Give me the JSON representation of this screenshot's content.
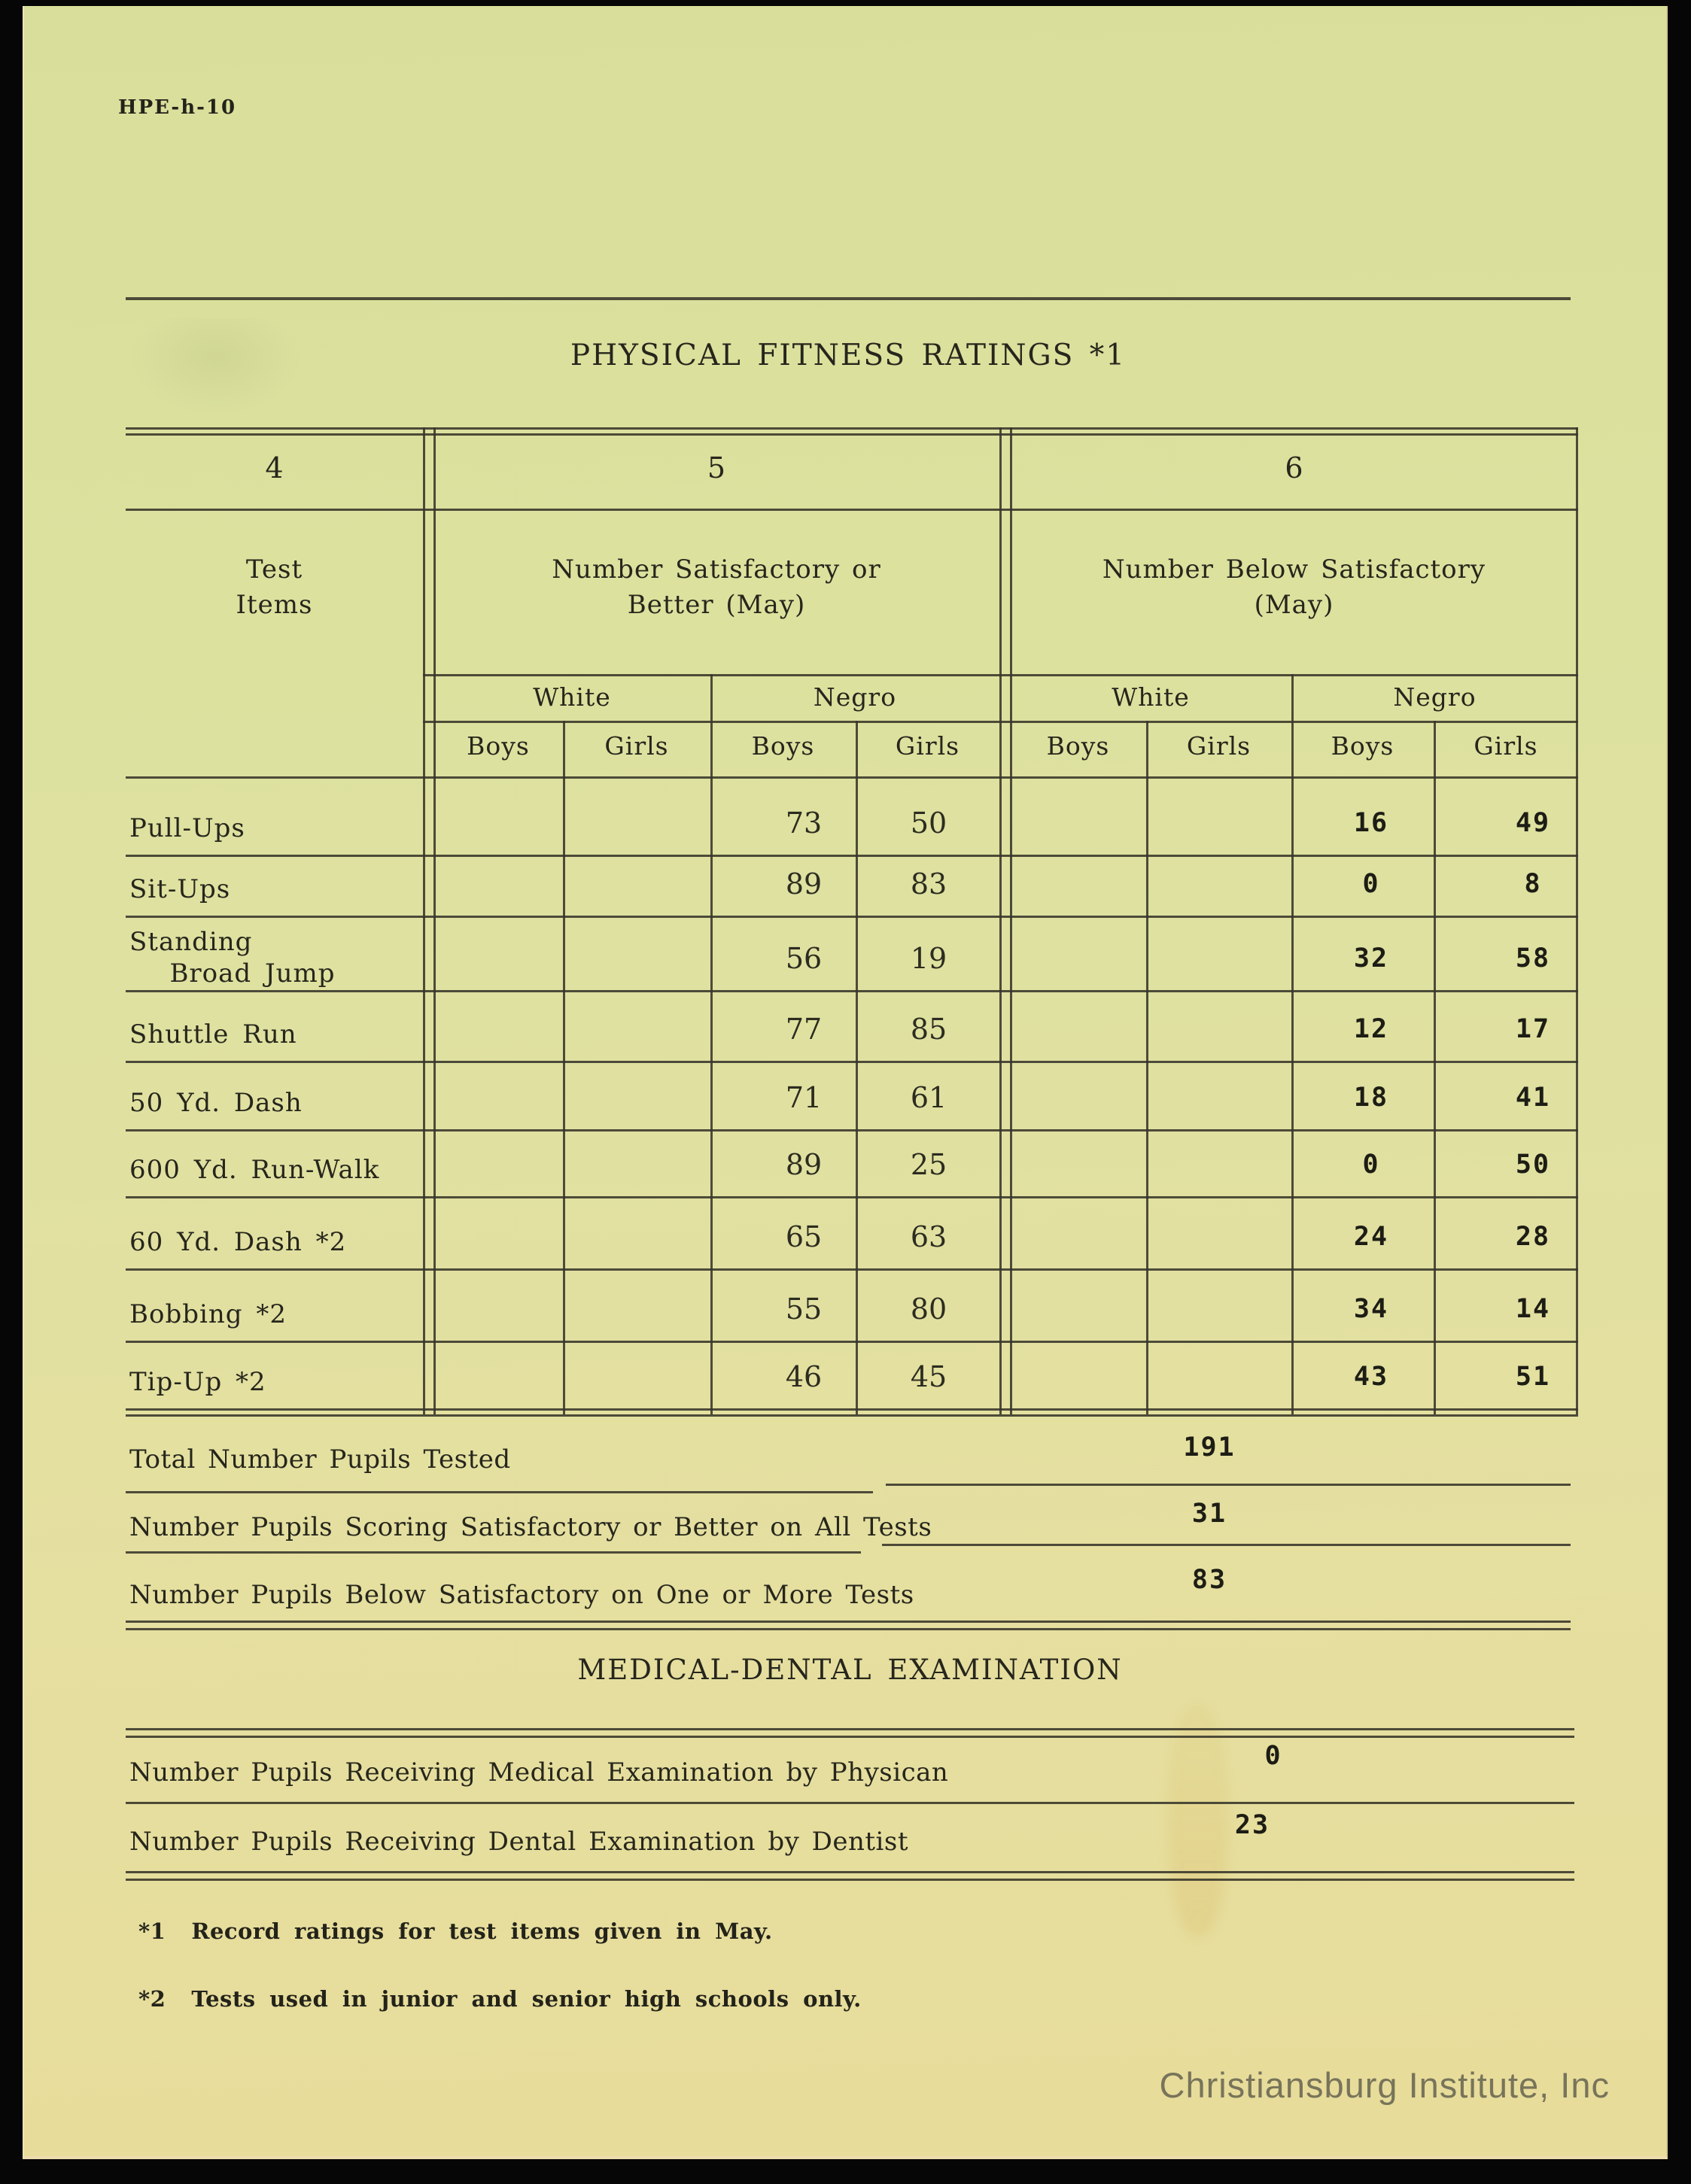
{
  "page": {
    "form_number": "HPE-h-10",
    "title": "PHYSICAL FITNESS RATINGS *1",
    "watermark": "Christiansburg Institute, Inc",
    "paper_color": "#dde19e",
    "ink_color": "#2a2a1e",
    "watermark_color": "#6e6c55"
  },
  "table": {
    "column_numbers": [
      "4",
      "5",
      "6"
    ],
    "col4_header": "Test\nItems",
    "col5_header": "Number Satisfactory or\nBetter (May)",
    "col6_header": "Number Below Satisfactory\n(May)",
    "race_headers": [
      "White",
      "Negro"
    ],
    "sex_headers": [
      "Boys",
      "Girls"
    ],
    "rows": [
      {
        "label": "Pull-Ups",
        "sat": {
          "white_boys": "",
          "white_girls": "",
          "negro_boys": "73",
          "negro_girls": "50"
        },
        "below": {
          "white_boys": "",
          "white_girls": "",
          "negro_boys": "16",
          "negro_girls": "49"
        }
      },
      {
        "label": "Sit-Ups",
        "sat": {
          "white_boys": "",
          "white_girls": "",
          "negro_boys": "89",
          "negro_girls": "83"
        },
        "below": {
          "white_boys": "",
          "white_girls": "",
          "negro_boys": "0",
          "negro_girls": "8"
        }
      },
      {
        "label": "Standing\n   Broad Jump",
        "sat": {
          "white_boys": "",
          "white_girls": "",
          "negro_boys": "56",
          "negro_girls": "19"
        },
        "below": {
          "white_boys": "",
          "white_girls": "",
          "negro_boys": "32",
          "negro_girls": "58"
        }
      },
      {
        "label": "Shuttle Run",
        "sat": {
          "white_boys": "",
          "white_girls": "",
          "negro_boys": "77",
          "negro_girls": "85"
        },
        "below": {
          "white_boys": "",
          "white_girls": "",
          "negro_boys": "12",
          "negro_girls": "17"
        }
      },
      {
        "label": "50 Yd. Dash",
        "sat": {
          "white_boys": "",
          "white_girls": "",
          "negro_boys": "71",
          "negro_girls": "61"
        },
        "below": {
          "white_boys": "",
          "white_girls": "",
          "negro_boys": "18",
          "negro_girls": "41"
        }
      },
      {
        "label": "600 Yd. Run-Walk",
        "sat": {
          "white_boys": "",
          "white_girls": "",
          "negro_boys": "89",
          "negro_girls": "25"
        },
        "below": {
          "white_boys": "",
          "white_girls": "",
          "negro_boys": "0",
          "negro_girls": "50"
        }
      },
      {
        "label": "60 Yd. Dash *2",
        "sat": {
          "white_boys": "",
          "white_girls": "",
          "negro_boys": "65",
          "negro_girls": "63"
        },
        "below": {
          "white_boys": "",
          "white_girls": "",
          "negro_boys": "24",
          "negro_girls": "28"
        }
      },
      {
        "label": "Bobbing *2",
        "sat": {
          "white_boys": "",
          "white_girls": "",
          "negro_boys": "55",
          "negro_girls": "80"
        },
        "below": {
          "white_boys": "",
          "white_girls": "",
          "negro_boys": "34",
          "negro_girls": "14"
        }
      },
      {
        "label": "Tip-Up *2",
        "sat": {
          "white_boys": "",
          "white_girls": "",
          "negro_boys": "46",
          "negro_girls": "45"
        },
        "below": {
          "white_boys": "",
          "white_girls": "",
          "negro_boys": "43",
          "negro_girls": "51"
        }
      }
    ]
  },
  "summary": {
    "rows": [
      {
        "label": "Total Number Pupils Tested",
        "value": "191"
      },
      {
        "label": "Number Pupils Scoring Satisfactory or Better on All Tests",
        "value": "31"
      },
      {
        "label": "Number Pupils Below Satisfactory on One or More Tests",
        "value": "83"
      }
    ]
  },
  "medical": {
    "heading": "MEDICAL-DENTAL EXAMINATION",
    "rows": [
      {
        "label": "Number Pupils Receiving Medical Examination by Physican",
        "value": "0"
      },
      {
        "label": "Number Pupils Receiving Dental Examination by Dentist",
        "value": "23"
      }
    ]
  },
  "footnotes": [
    {
      "marker": "*1",
      "text": "Record ratings for test items given in May."
    },
    {
      "marker": "*2",
      "text": "Tests used in junior and senior high schools only."
    }
  ]
}
